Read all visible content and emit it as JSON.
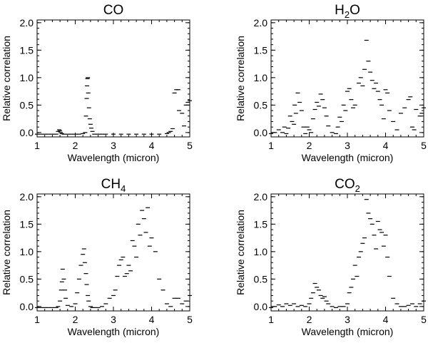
{
  "colors": {
    "ink": "#000000",
    "background": "#ffffff"
  },
  "chart_data": [
    {
      "type": "scatter",
      "title": "CO",
      "title_sub": "",
      "xlabel": "Wavelength (micron)",
      "ylabel": "Relative correlation",
      "xlim": [
        1,
        5
      ],
      "ylim": [
        -0.08,
        2.05
      ],
      "xticks": [
        "1",
        "2",
        "3",
        "4",
        "5"
      ],
      "yticks": [
        "0.0",
        "0.5",
        "1.0",
        "1.5",
        "2.0"
      ],
      "x": [
        1.0,
        1.1,
        1.2,
        1.3,
        1.4,
        1.5,
        1.55,
        1.58,
        1.6,
        1.62,
        1.65,
        1.7,
        1.8,
        1.9,
        2.0,
        2.1,
        2.2,
        2.26,
        2.28,
        2.3,
        2.31,
        2.32,
        2.33,
        2.34,
        2.36,
        2.38,
        2.4,
        2.42,
        2.45,
        2.5,
        2.6,
        2.7,
        2.8,
        3.0,
        3.2,
        3.4,
        3.6,
        3.8,
        4.0,
        4.2,
        4.4,
        4.45,
        4.5,
        4.55,
        4.6,
        4.65,
        4.7,
        4.72,
        4.8,
        4.85,
        4.9,
        4.95,
        5.0
      ],
      "y": [
        -0.03,
        -0.03,
        -0.03,
        -0.03,
        -0.03,
        -0.03,
        0.02,
        0.05,
        0.03,
        0.0,
        -0.02,
        -0.03,
        -0.03,
        -0.03,
        -0.03,
        -0.03,
        -0.02,
        0.0,
        0.3,
        0.62,
        0.85,
        0.98,
        1.0,
        0.72,
        0.45,
        0.25,
        0.15,
        0.08,
        0.02,
        -0.03,
        -0.03,
        -0.03,
        -0.03,
        -0.03,
        -0.03,
        -0.03,
        -0.03,
        -0.03,
        -0.03,
        -0.03,
        -0.02,
        0.0,
        0.02,
        0.07,
        0.72,
        0.78,
        0.78,
        0.4,
        0.35,
        0.12,
        0.5,
        0.55,
        0.58
      ]
    },
    {
      "type": "scatter",
      "title": "H",
      "title_sub": "2",
      "title_tail": "O",
      "xlabel": "Wavelength (micron)",
      "ylabel": "Relative correlation",
      "xlim": [
        1,
        5
      ],
      "ylim": [
        -0.08,
        2.05
      ],
      "xticks": [
        "1",
        "2",
        "3",
        "4",
        "5"
      ],
      "yticks": [
        "0.0",
        "0.5",
        "1.0",
        "1.5",
        "2.0"
      ],
      "x": [
        1.0,
        1.1,
        1.2,
        1.3,
        1.35,
        1.4,
        1.45,
        1.5,
        1.55,
        1.6,
        1.62,
        1.65,
        1.7,
        1.75,
        1.8,
        1.85,
        1.9,
        1.95,
        2.0,
        2.05,
        2.1,
        2.15,
        2.2,
        2.25,
        2.3,
        2.35,
        2.4,
        2.45,
        2.5,
        2.6,
        2.7,
        2.75,
        2.8,
        2.85,
        2.9,
        2.95,
        3.0,
        3.05,
        3.1,
        3.15,
        3.2,
        3.3,
        3.35,
        3.4,
        3.45,
        3.5,
        3.55,
        3.6,
        3.65,
        3.7,
        3.75,
        3.8,
        3.85,
        3.9,
        3.95,
        4.0,
        4.05,
        4.1,
        4.2,
        4.3,
        4.4,
        4.5,
        4.6,
        4.65,
        4.7,
        4.75,
        4.8,
        4.9,
        4.95,
        5.0
      ],
      "y": [
        -0.02,
        0.0,
        0.05,
        0.0,
        0.1,
        -0.02,
        0.08,
        0.3,
        0.2,
        0.15,
        0.5,
        0.35,
        0.72,
        0.55,
        0.4,
        0.1,
        -0.02,
        0.1,
        0.05,
        0.0,
        0.25,
        0.42,
        0.55,
        0.48,
        0.7,
        0.6,
        0.45,
        0.3,
        0.12,
        0.0,
        -0.02,
        0.1,
        0.28,
        0.2,
        0.5,
        0.4,
        0.75,
        0.8,
        0.6,
        0.45,
        0.5,
        0.9,
        1.0,
        0.85,
        1.15,
        1.68,
        1.3,
        1.1,
        0.95,
        0.8,
        0.9,
        0.75,
        0.6,
        0.5,
        0.25,
        0.78,
        0.72,
        0.4,
        0.2,
        0.05,
        0.35,
        0.45,
        0.6,
        0.65,
        0.1,
        0.05,
        0.42,
        0.3,
        0.35,
        0.45
      ]
    },
    {
      "type": "scatter",
      "title": "CH",
      "title_sub": "4",
      "xlabel": "Wavelength (micron)",
      "ylabel": "Relative correlation",
      "xlim": [
        1,
        5
      ],
      "ylim": [
        -0.08,
        2.05
      ],
      "xticks": [
        "1",
        "2",
        "3",
        "4",
        "5"
      ],
      "yticks": [
        "0.0",
        "0.5",
        "1.0",
        "1.5",
        "2.0"
      ],
      "x": [
        1.0,
        1.1,
        1.2,
        1.3,
        1.4,
        1.5,
        1.55,
        1.6,
        1.63,
        1.65,
        1.67,
        1.7,
        1.73,
        1.75,
        1.8,
        1.9,
        2.0,
        2.05,
        2.1,
        2.15,
        2.2,
        2.23,
        2.25,
        2.28,
        2.3,
        2.33,
        2.35,
        2.4,
        2.45,
        2.5,
        2.6,
        2.7,
        2.8,
        2.9,
        3.0,
        3.05,
        3.1,
        3.15,
        3.2,
        3.25,
        3.3,
        3.35,
        3.4,
        3.45,
        3.5,
        3.55,
        3.6,
        3.65,
        3.7,
        3.75,
        3.8,
        3.85,
        3.9,
        3.95,
        4.0,
        4.1,
        4.2,
        4.3,
        4.4,
        4.5,
        4.6,
        4.7,
        4.8,
        4.9,
        5.0
      ],
      "y": [
        -0.02,
        -0.02,
        -0.02,
        -0.02,
        -0.02,
        -0.02,
        0.0,
        0.1,
        0.3,
        0.45,
        0.68,
        0.5,
        0.3,
        0.15,
        0.02,
        0.0,
        0.05,
        0.25,
        0.5,
        0.75,
        0.95,
        1.05,
        0.8,
        0.6,
        0.4,
        0.2,
        0.1,
        0.0,
        -0.02,
        -0.02,
        -0.02,
        0.0,
        0.05,
        0.15,
        0.2,
        0.3,
        0.55,
        0.75,
        0.85,
        0.9,
        0.55,
        0.6,
        0.75,
        0.65,
        1.2,
        1.1,
        0.9,
        1.5,
        1.3,
        1.75,
        1.6,
        1.35,
        1.8,
        1.1,
        1.25,
        1.0,
        0.5,
        0.3,
        0.05,
        0.0,
        0.15,
        0.15,
        0.05,
        0.1,
        0.2
      ]
    },
    {
      "type": "scatter",
      "title": "CO",
      "title_sub": "2",
      "xlabel": "Wavelength (micron)",
      "ylabel": "Relative correlation",
      "xlim": [
        1,
        5
      ],
      "ylim": [
        -0.08,
        2.05
      ],
      "xticks": [
        "1",
        "2",
        "3",
        "4",
        "5"
      ],
      "yticks": [
        "0.0",
        "0.5",
        "1.0",
        "1.5",
        "2.0"
      ],
      "x": [
        1.0,
        1.1,
        1.2,
        1.3,
        1.4,
        1.5,
        1.6,
        1.7,
        1.8,
        1.9,
        2.0,
        2.05,
        2.1,
        2.15,
        2.2,
        2.25,
        2.3,
        2.35,
        2.4,
        2.45,
        2.5,
        2.6,
        2.7,
        2.8,
        2.9,
        3.0,
        3.05,
        3.1,
        3.15,
        3.2,
        3.25,
        3.3,
        3.35,
        3.4,
        3.45,
        3.5,
        3.55,
        3.6,
        3.65,
        3.7,
        3.75,
        3.8,
        3.85,
        3.9,
        3.95,
        4.0,
        4.05,
        4.1,
        4.2,
        4.3,
        4.4,
        4.5,
        4.6,
        4.7,
        4.8,
        4.9,
        5.0
      ],
      "y": [
        -0.02,
        0.0,
        0.03,
        0.0,
        0.05,
        0.02,
        0.05,
        0.0,
        0.02,
        0.0,
        0.05,
        0.15,
        0.25,
        0.42,
        0.35,
        0.3,
        0.2,
        0.15,
        0.18,
        0.1,
        0.05,
        0.0,
        -0.02,
        0.0,
        0.0,
        0.05,
        0.25,
        0.35,
        0.5,
        0.75,
        0.55,
        0.9,
        1.0,
        1.15,
        1.25,
        1.95,
        1.7,
        1.6,
        1.5,
        1.3,
        1.05,
        1.55,
        1.4,
        1.35,
        1.1,
        1.3,
        0.9,
        0.55,
        0.15,
        0.05,
        0.0,
        0.0,
        0.02,
        0.05,
        0.0,
        0.05,
        0.1
      ]
    }
  ]
}
